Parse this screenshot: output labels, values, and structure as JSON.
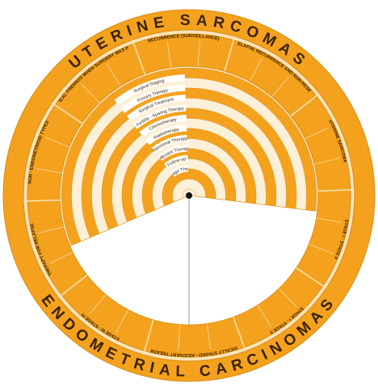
{
  "ring": {
    "top": "UTERINE SARCOMAS",
    "bottom": "ENDOMETRIAL CARCINOMAS"
  },
  "sections": [
    "RECURRENCE (SURVEILLANCE)",
    "THERAPY FOR RELAPSE RECURRENCE AND NON-RESECTABLE DISEASE",
    "UTERINE SARCOMA",
    "STAGE I - STAGE II",
    "STAGE I - STAGE II",
    "SURGICALLY STAGED - ADJUVANT TREATMENT",
    "STAGE III - STAGE IV",
    "THERAPY FOR RELAPSE",
    "NON - ENDOMETRIOID TYPES",
    "PATHOLOGICAL FINDINGS WHEN SURGERY WAS PERFORMED"
  ],
  "therapies": [
    "Surgical Staging",
    "Primary Therapy",
    "Surgical Treatment",
    "Fertility - Sparing Therapy",
    "Chemotherapy",
    "Radiotherapy",
    "Hormonal Therapy",
    "Adjuvant Therapy",
    "Follow-up",
    "Salvage Therapy"
  ]
}
